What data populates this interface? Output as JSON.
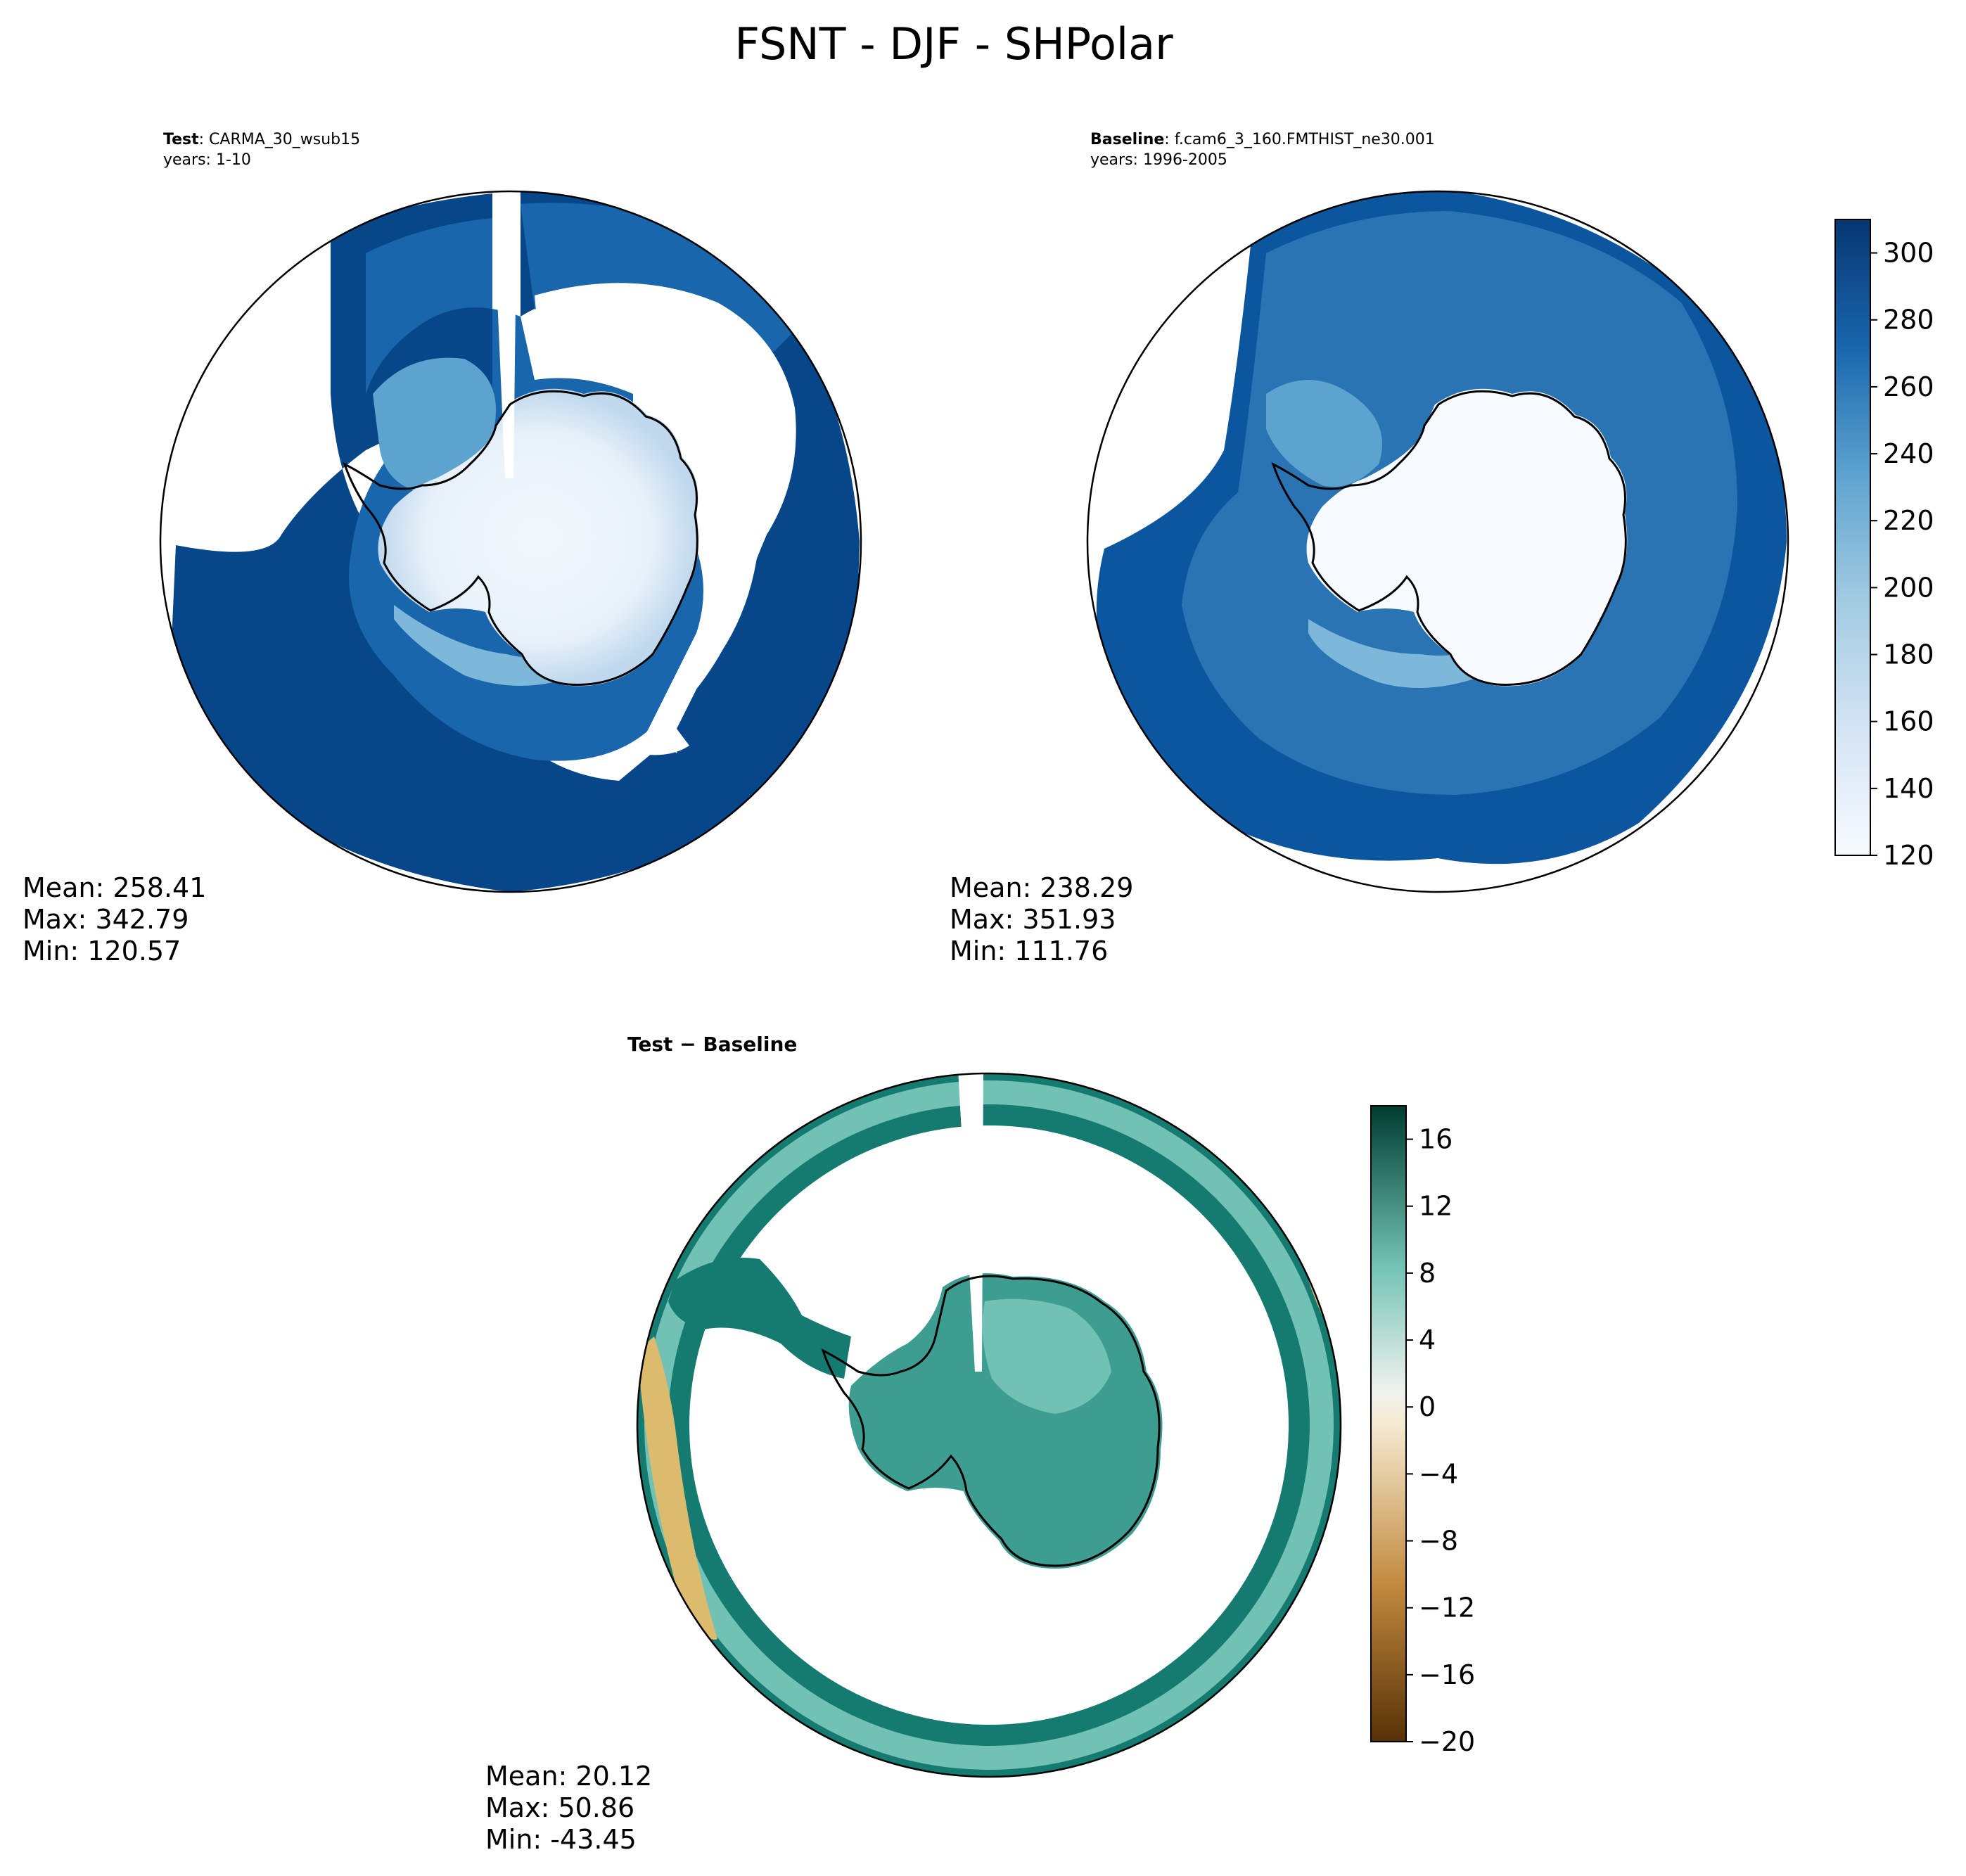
{
  "figure": {
    "title": "FSNT - DJF - SHPolar"
  },
  "panels": {
    "test": {
      "label_bold": "Test",
      "label_rest": ": CARMA_30_wsub15",
      "years": "years: 1-10",
      "stats": {
        "mean": "Mean: 258.41",
        "max": "Max: 342.79",
        "min": "Min: 120.57"
      }
    },
    "baseline": {
      "label_bold": "Baseline",
      "label_rest": ": f.cam6_3_160.FMTHIST_ne30.001",
      "years": "years: 1996-2005",
      "stats": {
        "mean": "Mean: 238.29",
        "max": "Max: 351.93",
        "min": "Min: 111.76"
      }
    },
    "diff": {
      "label": "Test − Baseline",
      "stats": {
        "mean": "Mean: 20.12",
        "max": "Max: 50.86",
        "min": "Min: -43.45"
      }
    }
  },
  "colorbars": {
    "main": {
      "colormap": "Blues",
      "range": [
        120,
        310
      ],
      "ticks": [
        "120",
        "140",
        "160",
        "180",
        "200",
        "220",
        "240",
        "260",
        "280",
        "300"
      ],
      "tick_values": [
        120,
        140,
        160,
        180,
        200,
        220,
        240,
        260,
        280,
        300
      ]
    },
    "diff": {
      "colormap": "BrBG",
      "range": [
        -20,
        18
      ],
      "ticks": [
        "−20",
        "−16",
        "−12",
        "−8",
        "−4",
        "0",
        "4",
        "8",
        "12",
        "16"
      ],
      "tick_values": [
        -20,
        -16,
        -12,
        -8,
        -4,
        0,
        4,
        8,
        12,
        16
      ]
    }
  },
  "colors": {
    "blues": [
      "#f7fbff",
      "#e6f0f9",
      "#d4e4f4",
      "#bfd8ed",
      "#a2cbe2",
      "#7db8da",
      "#5da3d0",
      "#3f8cc3",
      "#2a74b4",
      "#1966ad",
      "#0c56a0",
      "#08468a",
      "#083673"
    ],
    "brbg": [
      "#573106",
      "#7e4d0c",
      "#a36618",
      "#c38b3f",
      "#dcba6e",
      "#ecd7a1",
      "#f5ead2",
      "#f0f2ee",
      "#cde9e4",
      "#a0dbd0",
      "#71c2b4",
      "#3e9d91",
      "#157a6f",
      "#005e51",
      "#003c30"
    ],
    "land_outline": "#000000"
  }
}
